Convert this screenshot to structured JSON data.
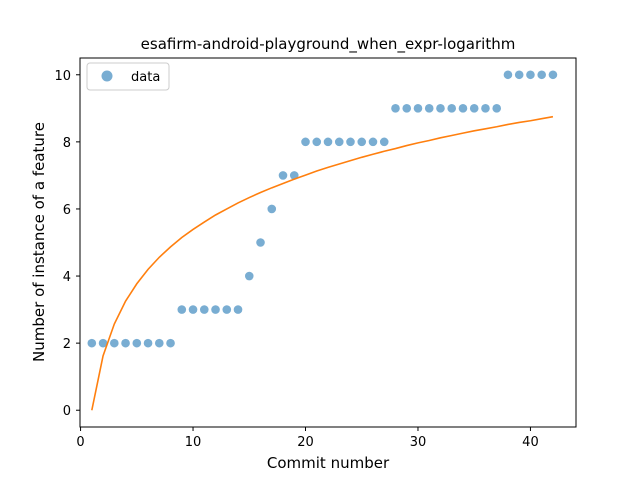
{
  "chart_data": {
    "type": "scatter",
    "title": "esafirm-android-playground_when_expr-logarithm",
    "xlabel": "Commit number",
    "ylabel": "Number of instance of a feature",
    "xlim": [
      -0.05,
      44.05
    ],
    "ylim": [
      -0.5,
      10.5
    ],
    "xticks": [
      0,
      10,
      20,
      30,
      40
    ],
    "yticks": [
      0,
      2,
      4,
      6,
      8,
      10
    ],
    "legend": {
      "position": "top-left",
      "entries": [
        "data"
      ]
    },
    "series": [
      {
        "name": "data",
        "kind": "scatter",
        "color": "#1f77b4",
        "x": [
          1,
          2,
          3,
          4,
          5,
          6,
          7,
          8,
          9,
          10,
          11,
          12,
          13,
          14,
          15,
          16,
          17,
          18,
          19,
          20,
          21,
          22,
          23,
          24,
          25,
          26,
          27,
          28,
          29,
          30,
          31,
          32,
          33,
          34,
          35,
          36,
          37,
          38,
          39,
          40,
          41,
          42
        ],
        "y": [
          2,
          2,
          2,
          2,
          2,
          2,
          2,
          2,
          3,
          3,
          3,
          3,
          3,
          3,
          4,
          5,
          6,
          7,
          7,
          8,
          8,
          8,
          8,
          8,
          8,
          8,
          8,
          9,
          9,
          9,
          9,
          9,
          9,
          9,
          9,
          9,
          9,
          10,
          10,
          10,
          10,
          10
        ]
      },
      {
        "kind": "line",
        "color": "#ff7f0e",
        "x": [
          1,
          2,
          3,
          4,
          5,
          6,
          7,
          8,
          9,
          10,
          11,
          12,
          13,
          14,
          15,
          16,
          17,
          18,
          19,
          20,
          21,
          22,
          23,
          24,
          25,
          26,
          27,
          28,
          29,
          30,
          31,
          32,
          33,
          34,
          35,
          36,
          37,
          38,
          39,
          40,
          41,
          42
        ],
        "y": [
          0,
          1.62,
          2.57,
          3.25,
          3.77,
          4.2,
          4.56,
          4.87,
          5.15,
          5.39,
          5.61,
          5.82,
          6.0,
          6.18,
          6.34,
          6.49,
          6.63,
          6.76,
          6.89,
          7.01,
          7.13,
          7.24,
          7.34,
          7.44,
          7.54,
          7.63,
          7.72,
          7.8,
          7.89,
          7.97,
          8.04,
          8.12,
          8.19,
          8.26,
          8.33,
          8.39,
          8.45,
          8.52,
          8.58,
          8.63,
          8.69,
          8.75
        ]
      }
    ]
  }
}
